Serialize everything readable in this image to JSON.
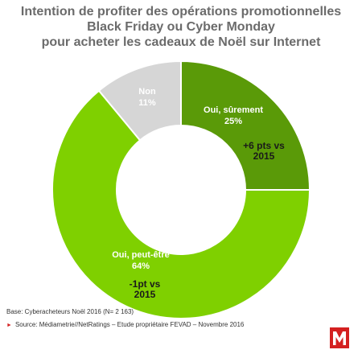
{
  "title_lines": [
    "Intention de profiter des opérations promotionnelles",
    "Black Friday ou Cyber Monday",
    "pour acheter les cadeaux de Noël sur Internet"
  ],
  "chart_data": {
    "type": "pie",
    "donut": true,
    "slices": [
      {
        "label": "Oui, sûrement",
        "value": 25,
        "value_label": "25%",
        "note_lines": [
          "+6 pts vs",
          "2015"
        ],
        "color": "#5a9a08"
      },
      {
        "label": "Oui, peut-être",
        "value": 64,
        "value_label": "64%",
        "note_lines": [
          "-1pt vs",
          "2015"
        ],
        "color": "#7fd000"
      },
      {
        "label": "Non",
        "value": 11,
        "value_label": "11%",
        "note_lines": [],
        "color": "#d6d6d6"
      }
    ]
  },
  "footer": {
    "base": "Base: Cyberacheteurs Noël 2016  (N= 2 163)",
    "source": "Source: Médiametrie//NetRatings – Etude propriétaire FEVAD – Novembre 2016"
  },
  "colors": {
    "title": "#6b6b6b",
    "logo": "#d42020"
  },
  "logo_icon": "fevad-m-logo"
}
